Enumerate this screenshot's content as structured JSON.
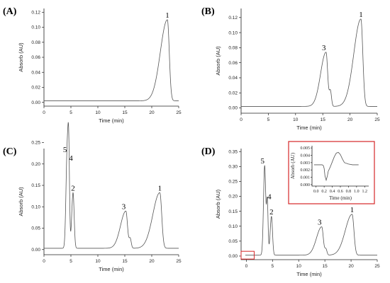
{
  "chart_data": [
    {
      "panel": "(A)",
      "type": "line",
      "xlabel": "Time (min)",
      "ylabel": "Absorb (AU)",
      "xlim": [
        0,
        25
      ],
      "ylim": [
        -0.005,
        0.125
      ],
      "xticks": [
        "0",
        "5",
        "10",
        "15",
        "20",
        "25"
      ],
      "yticks": [
        "0.00",
        "0.02",
        "0.04",
        "0.06",
        "0.08",
        "0.10",
        "0.12"
      ],
      "baseline": 0.002,
      "peaks": [
        {
          "label": "1",
          "time": 22.9,
          "height": 0.108,
          "rise": 1.3,
          "fall": 0.35
        }
      ]
    },
    {
      "panel": "(B)",
      "type": "line",
      "xlabel": "Time (min)",
      "ylabel": "Absorb (AU)",
      "xlim": [
        0,
        25
      ],
      "ylim": [
        -0.007,
        0.132
      ],
      "xticks": [
        "0",
        "5",
        "10",
        "15",
        "20",
        "25"
      ],
      "yticks": [
        "0.00",
        "0.02",
        "0.04",
        "0.06",
        "0.08",
        "0.10",
        "0.12"
      ],
      "baseline": 0.002,
      "peaks": [
        {
          "label": "3",
          "time": 15.6,
          "height": 0.072,
          "rise": 1.0,
          "fall": 0.3
        },
        {
          "label": "",
          "time": 16.4,
          "height": 0.02,
          "rise": 0.2,
          "fall": 0.2
        },
        {
          "label": "1",
          "time": 22.0,
          "height": 0.116,
          "rise": 1.3,
          "fall": 0.35
        }
      ]
    },
    {
      "panel": "(C)",
      "type": "line",
      "xlabel": "Time (min)",
      "ylabel": "Absorb (AU)",
      "xlim": [
        0,
        25
      ],
      "ylim": [
        -0.012,
        0.236
      ],
      "xticks": [
        "0",
        "5",
        "10",
        "15",
        "20",
        "25"
      ],
      "yticks": [
        "0.00",
        "0.05",
        "0.10",
        "0.15",
        "0.20",
        "0.25"
      ],
      "baseline": 0.003,
      "peaks": [
        {
          "label": "5",
          "time": 4.3,
          "height": 0.22,
          "rise": 0.22,
          "fall": 0.2
        },
        {
          "label": "4",
          "time": 4.6,
          "height": 0.2,
          "rise": 0.15,
          "fall": 0.15
        },
        {
          "label": "2",
          "time": 5.4,
          "height": 0.13,
          "rise": 0.25,
          "fall": 0.2
        },
        {
          "label": "3",
          "time": 15.2,
          "height": 0.087,
          "rise": 1.0,
          "fall": 0.3
        },
        {
          "label": "",
          "time": 16.0,
          "height": 0.022,
          "rise": 0.2,
          "fall": 0.2
        },
        {
          "label": "1",
          "time": 21.5,
          "height": 0.13,
          "rise": 1.3,
          "fall": 0.35
        }
      ]
    },
    {
      "panel": "(D)",
      "type": "line",
      "xlabel": "Time (min)",
      "ylabel": "Absorb (AU)",
      "xlim": [
        -1,
        25
      ],
      "ylim": [
        -0.012,
        0.36
      ],
      "xticks": [
        "0",
        "5",
        "10",
        "15",
        "20",
        "25"
      ],
      "yticks": [
        "0.00",
        "0.05",
        "0.10",
        "0.15",
        "0.20",
        "0.25",
        "0.30",
        "0.35"
      ],
      "baseline": 0.003,
      "highlight_box": {
        "x": [
          -1.0,
          1.5
        ],
        "y": [
          -0.01,
          0.016
        ]
      },
      "peaks": [
        {
          "label": "5",
          "time": 3.5,
          "height": 0.3,
          "rise": 0.22,
          "fall": 0.2
        },
        {
          "label": "4",
          "time": 4.0,
          "height": 0.18,
          "rise": 0.15,
          "fall": 0.15
        },
        {
          "label": "2",
          "time": 4.8,
          "height": 0.13,
          "rise": 0.25,
          "fall": 0.2
        },
        {
          "label": "3",
          "time": 14.4,
          "height": 0.095,
          "rise": 1.0,
          "fall": 0.3
        },
        {
          "label": "",
          "time": 15.2,
          "height": 0.02,
          "rise": 0.2,
          "fall": 0.2
        },
        {
          "label": "1",
          "time": 20.2,
          "height": 0.137,
          "rise": 1.3,
          "fall": 0.35
        }
      ],
      "inset": {
        "xlabel": "Time (min)",
        "ylabel": "Absorb (AU)",
        "xlim": [
          -0.1,
          1.3
        ],
        "ylim": [
          -0.0002,
          0.0053
        ],
        "xticks": [
          "0.0",
          "0.2",
          "0.4",
          "0.6",
          "0.8",
          "1.0",
          "1.2"
        ],
        "yticks": [
          "0.000",
          "0.001",
          "0.002",
          "0.003",
          "0.004",
          "0.005"
        ],
        "x": [
          -0.05,
          0.0,
          0.05,
          0.1,
          0.15,
          0.18,
          0.2,
          0.22,
          0.25,
          0.28,
          0.3,
          0.35,
          0.4,
          0.45,
          0.5,
          0.55,
          0.6,
          0.65,
          0.7,
          0.8,
          0.9,
          1.0,
          1.05
        ],
        "y": [
          0.0027,
          0.0027,
          0.0027,
          0.0027,
          0.0027,
          0.0026,
          0.0022,
          0.0012,
          0.0006,
          0.0012,
          0.0018,
          0.0024,
          0.0031,
          0.0038,
          0.0043,
          0.0044,
          0.0041,
          0.0035,
          0.003,
          0.0028,
          0.0027,
          0.0027,
          0.0027
        ]
      }
    }
  ]
}
